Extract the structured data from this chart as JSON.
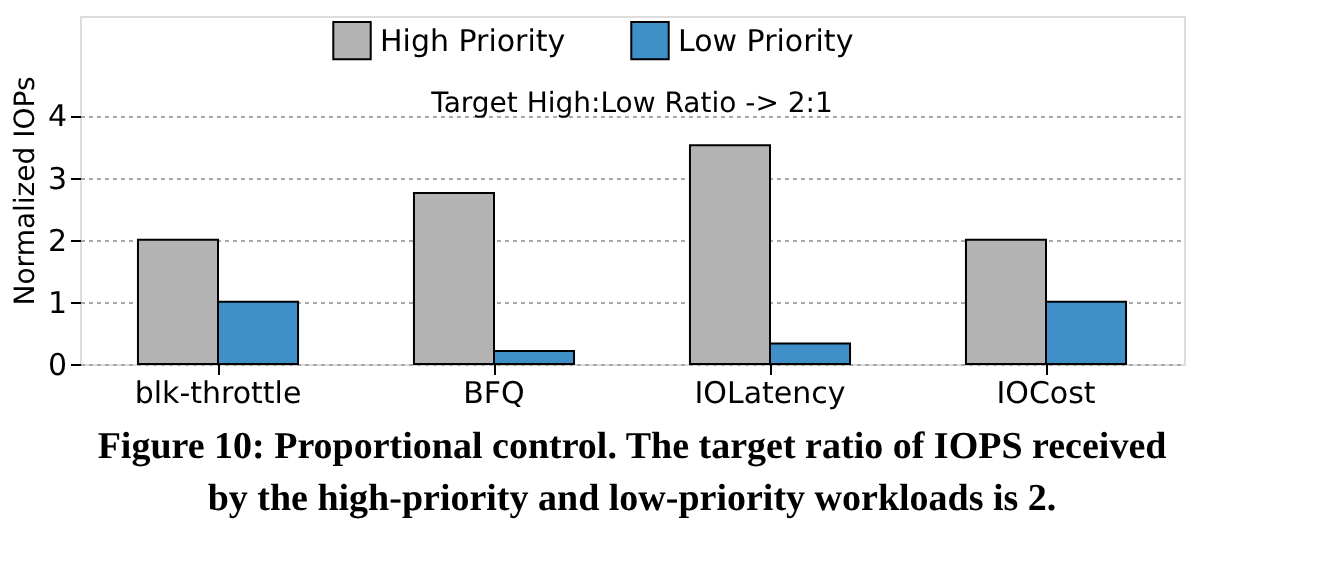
{
  "chart_data": {
    "type": "bar",
    "ylabel": "Normalized IOPs",
    "categories": [
      "blk-throttle",
      "BFQ",
      "IOLatency",
      "IOCost"
    ],
    "series": [
      {
        "name": "High Priority",
        "color": "#b3b3b3",
        "values": [
          2.0,
          2.75,
          3.52,
          2.0
        ]
      },
      {
        "name": "Low Priority",
        "color": "#3f8fc9",
        "values": [
          1.0,
          0.21,
          0.33,
          1.0
        ]
      }
    ],
    "ylim": [
      0,
      5.6
    ],
    "yticks": [
      0,
      1,
      2,
      3,
      4
    ],
    "grid": "y",
    "legend": "top",
    "annotations": [
      "Target High:Low Ratio -> 2:1",
      "Figure 10: Proportional control. The target ratio of IOPS received by the high-priority and low-priority workloads is 2."
    ]
  }
}
